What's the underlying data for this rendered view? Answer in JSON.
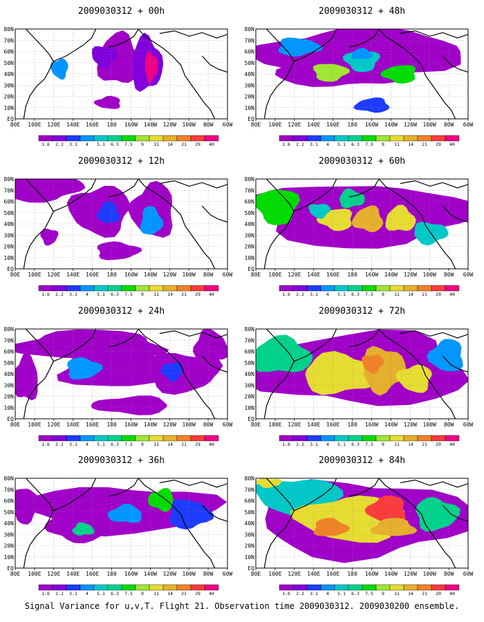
{
  "panels": [
    {
      "title": "2009030312 + 00h",
      "lead_hours": 0
    },
    {
      "title": "2009030312 + 12h",
      "lead_hours": 12
    },
    {
      "title": "2009030312 + 24h",
      "lead_hours": 24
    },
    {
      "title": "2009030312 + 36h",
      "lead_hours": 36
    },
    {
      "title": "2009030312 + 48h",
      "lead_hours": 48
    },
    {
      "title": "2009030312 + 60h",
      "lead_hours": 60
    },
    {
      "title": "2009030312 + 72h",
      "lead_hours": 72
    },
    {
      "title": "2009030312 + 84h",
      "lead_hours": 84
    }
  ],
  "lon_ticks": [
    "80E",
    "100E",
    "120E",
    "140E",
    "160E",
    "180",
    "160W",
    "140W",
    "120W",
    "100W",
    "80W",
    "60W"
  ],
  "lat_ticks": [
    "EQ",
    "10N",
    "20N",
    "30N",
    "40N",
    "50N",
    "60N",
    "70N",
    "80N"
  ],
  "colorbar": {
    "labels": [
      "1.6",
      "2.2",
      "3.1",
      "4",
      "5.1",
      "6.3",
      "7.5",
      "9",
      "11",
      "14",
      "21",
      "29",
      "40"
    ],
    "colors": [
      "#a000c8",
      "#8200dc",
      "#1e3cff",
      "#0096ff",
      "#00c8c8",
      "#00d28c",
      "#00dc00",
      "#a0e632",
      "#e6dc32",
      "#e6af2d",
      "#f08228",
      "#fa3c3c",
      "#f00082"
    ]
  },
  "footer": "Signal Variance for u,v,T. Flight 21. Observation time 2009030312. 2009030200 ensemble."
}
